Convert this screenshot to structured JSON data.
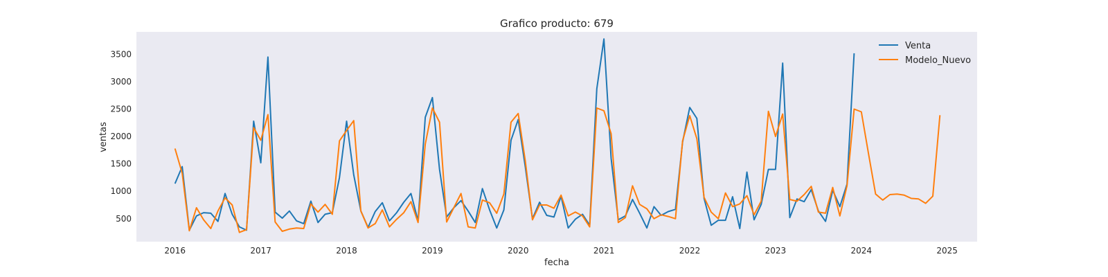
{
  "chart_data": {
    "type": "line",
    "title": "Grafico producto: 679",
    "xlabel": "fecha",
    "ylabel": "ventas",
    "xlim": [
      2015.55,
      2025.35
    ],
    "ylim": [
      80,
      3910
    ],
    "x_ticks": [
      2016,
      2017,
      2018,
      2019,
      2020,
      2021,
      2022,
      2023,
      2024,
      2025
    ],
    "y_ticks": [
      500,
      1000,
      1500,
      2000,
      2500,
      3000,
      3500
    ],
    "grid": false,
    "legend_position": "top-right",
    "background_color": "#eaeaf2",
    "series": [
      {
        "name": "Venta",
        "color": "#1f77b4",
        "start": 2016,
        "step_months": 1,
        "values": [
          1140,
          1450,
          290,
          550,
          610,
          600,
          450,
          960,
          580,
          350,
          290,
          2280,
          1520,
          3450,
          620,
          510,
          640,
          460,
          410,
          820,
          430,
          580,
          610,
          1250,
          2280,
          1300,
          640,
          340,
          630,
          790,
          460,
          610,
          800,
          960,
          460,
          2350,
          2710,
          1400,
          530,
          700,
          830,
          640,
          430,
          1050,
          660,
          330,
          660,
          1930,
          2310,
          1440,
          500,
          800,
          560,
          530,
          910,
          330,
          490,
          580,
          380,
          2870,
          3780,
          1600,
          480,
          550,
          850,
          600,
          330,
          720,
          560,
          630,
          670,
          1900,
          2530,
          2330,
          870,
          380,
          470,
          470,
          900,
          320,
          1350,
          480,
          760,
          1400,
          1400,
          3340,
          520,
          860,
          810,
          1030,
          640,
          450,
          1020,
          720,
          1130,
          3520
        ]
      },
      {
        "name": "Modelo_Nuevo",
        "color": "#ff7f0e",
        "start": 2016,
        "step_months": 1,
        "values": [
          1780,
          1330,
          280,
          700,
          480,
          320,
          640,
          880,
          750,
          250,
          300,
          2160,
          1930,
          2400,
          440,
          270,
          310,
          330,
          320,
          770,
          620,
          760,
          580,
          1920,
          2110,
          2290,
          640,
          330,
          410,
          660,
          350,
          490,
          610,
          810,
          430,
          1860,
          2520,
          2260,
          440,
          700,
          960,
          350,
          330,
          840,
          790,
          600,
          950,
          2260,
          2420,
          1550,
          480,
          750,
          750,
          690,
          930,
          550,
          620,
          550,
          350,
          2520,
          2470,
          2050,
          430,
          520,
          1100,
          760,
          680,
          500,
          570,
          540,
          500,
          1920,
          2380,
          1960,
          890,
          620,
          500,
          970,
          720,
          770,
          920,
          570,
          820,
          2460,
          2000,
          2410,
          850,
          820,
          940,
          1090,
          620,
          600,
          1070,
          550,
          1100,
          2500,
          2450,
          1690,
          950,
          840,
          940,
          950,
          930,
          870,
          860,
          780,
          910,
          2390
        ]
      }
    ]
  }
}
